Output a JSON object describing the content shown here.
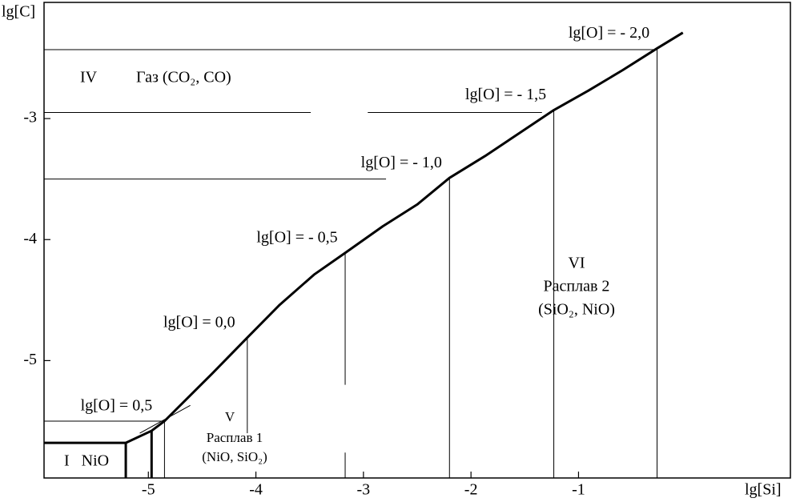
{
  "chart_data": {
    "type": "line",
    "x_label": "lg[Si]",
    "y_label": "lg[C]",
    "xlim": [
      -5.97,
      0.97
    ],
    "ylim": [
      -5.97,
      -2.04
    ],
    "xticks": [
      -5,
      -4,
      -3,
      -2,
      -1
    ],
    "yticks": [
      -3,
      -4,
      -5
    ],
    "series": [
      {
        "color": "#000000",
        "x": [
          -5.97,
          -5.21,
          -4.97,
          -4.85,
          -4.67,
          -4.41,
          -4.08,
          -3.78,
          -3.46,
          -3.17,
          -2.82,
          -2.5,
          -2.2,
          -1.87,
          -1.55,
          -1.23,
          -0.91,
          -0.59,
          -0.27,
          -0.03
        ],
        "values": [
          -5.68,
          -5.68,
          -5.58,
          -5.5,
          -5.34,
          -5.11,
          -4.81,
          -4.54,
          -4.29,
          -4.11,
          -3.89,
          -3.71,
          -3.49,
          -3.31,
          -3.12,
          -2.93,
          -2.77,
          -2.6,
          -2.42,
          -2.29
        ]
      }
    ],
    "phase_boundaries": [
      {
        "x": [
          -5.21,
          -5.21
        ],
        "y": [
          -5.68,
          -5.97
        ]
      },
      {
        "x": [
          -4.97,
          -4.97
        ],
        "y": [
          -5.58,
          -5.97
        ]
      }
    ],
    "guide_lines": [
      {
        "x": [
          -5.97,
          -0.27
        ],
        "y": [
          -2.43,
          -2.43
        ]
      },
      {
        "x": [
          -5.97,
          -3.49
        ],
        "y": [
          -2.95,
          -2.95
        ]
      },
      {
        "x": [
          -2.96,
          -1.34
        ],
        "y": [
          -2.95,
          -2.95
        ]
      },
      {
        "x": [
          -5.97,
          -2.79
        ],
        "y": [
          -3.5,
          -3.5
        ]
      },
      {
        "x": [
          -5.97,
          -4.85
        ],
        "y": [
          -5.5,
          -5.5
        ]
      },
      {
        "x": [
          -5.08,
          -4.61
        ],
        "y": [
          -5.6,
          -5.37
        ]
      }
    ],
    "isolines": [
      {
        "label": "lg[O] = 0,5",
        "x": -4.85,
        "y_ranges": [
          [
            -5.5,
            -5.97
          ]
        ]
      },
      {
        "label": "lg[O] = 0,0",
        "x": -4.08,
        "y_ranges": [
          [
            -4.81,
            -5.6
          ]
        ]
      },
      {
        "label": "lg[O] = - 0,5",
        "x": -3.17,
        "y_ranges": [
          [
            -4.11,
            -5.2
          ],
          [
            -5.76,
            -5.97
          ]
        ]
      },
      {
        "label": "lg[O] = - 1,0",
        "x": -2.2,
        "y_ranges": [
          [
            -3.49,
            -5.97
          ]
        ]
      },
      {
        "label": "lg[O] = - 1,5",
        "x": -1.23,
        "y_ranges": [
          [
            -2.93,
            -5.97
          ]
        ]
      },
      {
        "label": "lg[O] = - 2,0",
        "x": -0.27,
        "y_ranges": [
          [
            -2.42,
            -5.97
          ]
        ]
      }
    ],
    "regions": {
      "gas": [
        "IV",
        "Газ (CO₂, CO)"
      ],
      "melt2": [
        "VI",
        "Расплав 2",
        "(SiO₂, NiO)"
      ],
      "melt1": [
        "V",
        "Расплав 1",
        "(NiO, SiO₂)"
      ],
      "nio": [
        "I   NiO"
      ]
    }
  }
}
